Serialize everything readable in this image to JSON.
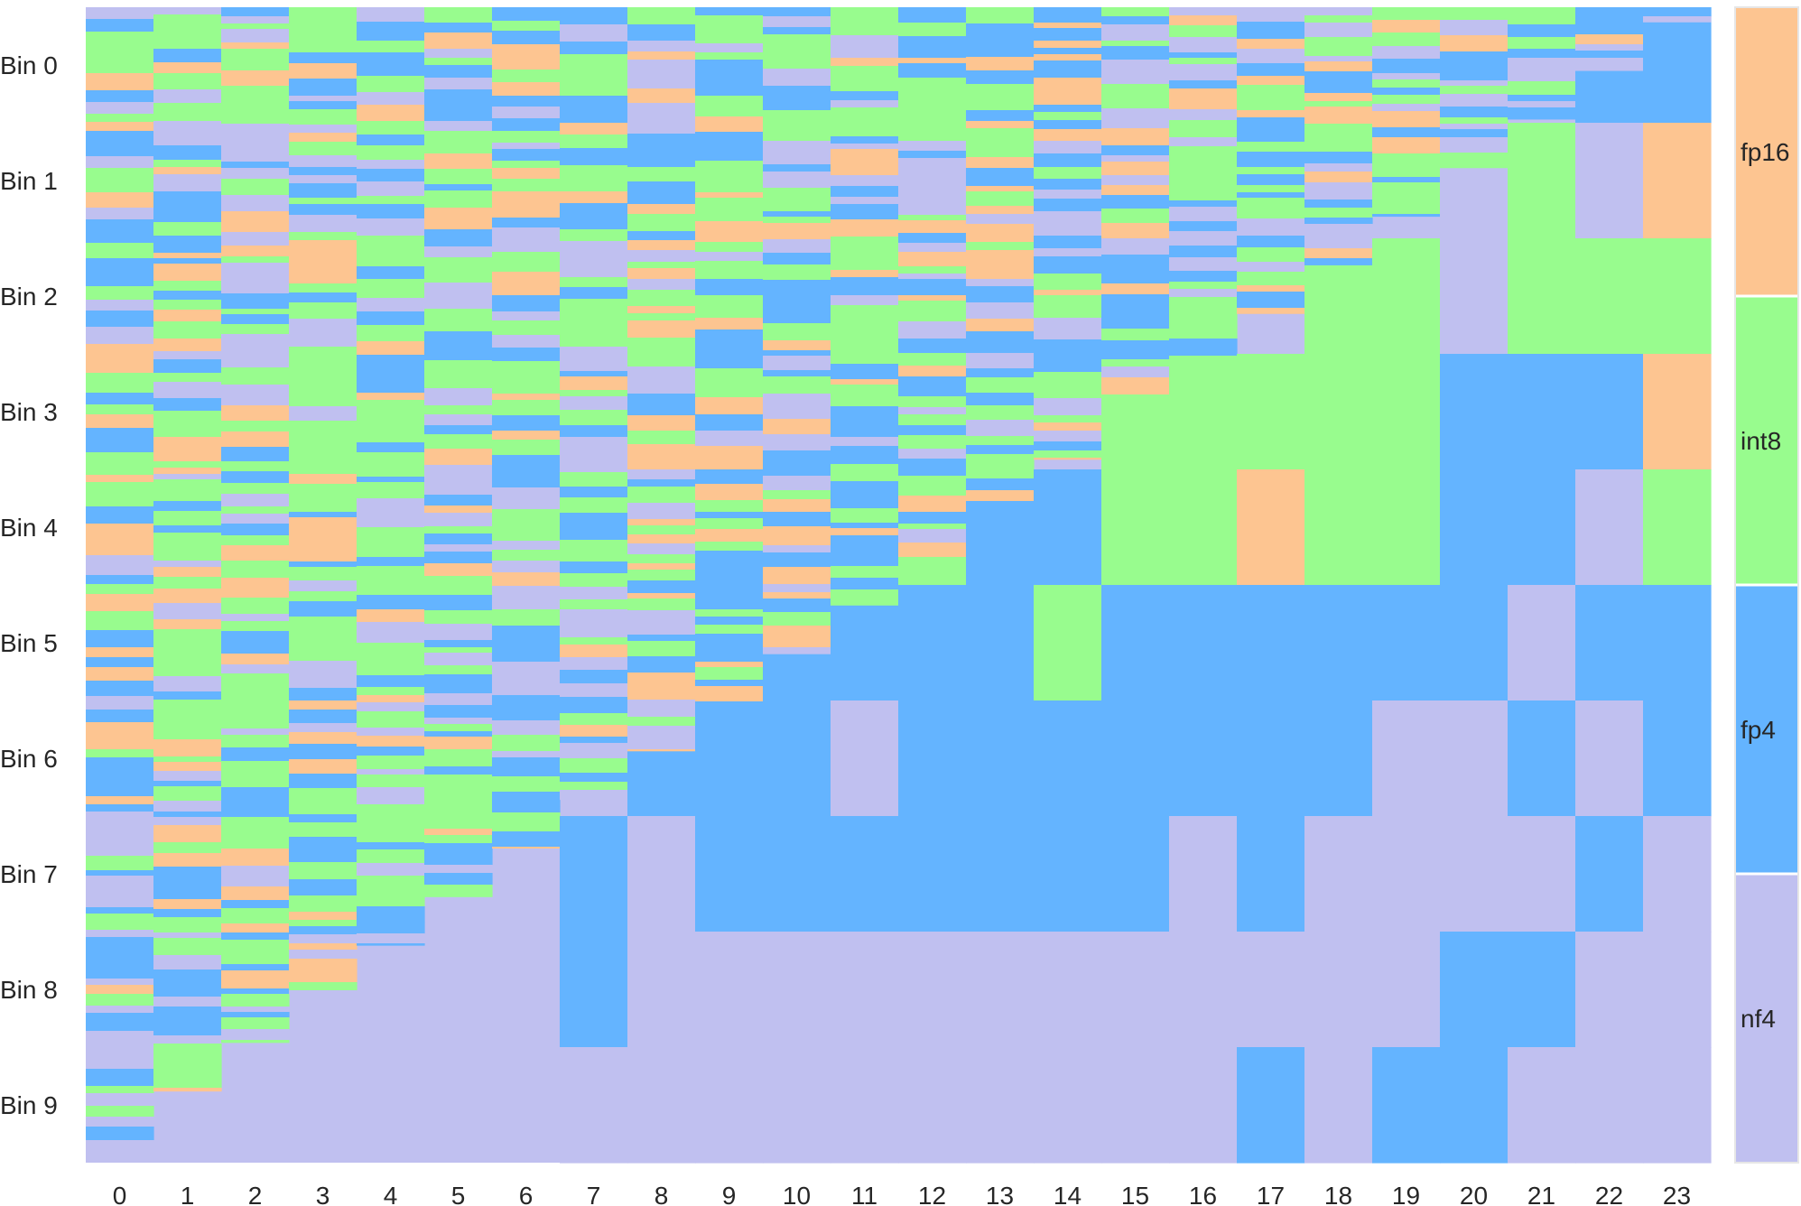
{
  "chart_data": {
    "type": "heatmap",
    "title": "",
    "xlabel": "",
    "ylabel": "",
    "x_categories": [
      "0",
      "1",
      "2",
      "3",
      "4",
      "5",
      "6",
      "7",
      "8",
      "9",
      "10",
      "11",
      "12",
      "13",
      "14",
      "15",
      "16",
      "17",
      "18",
      "19",
      "20",
      "21",
      "22",
      "23"
    ],
    "y_categories": [
      "Bin 0",
      "Bin 1",
      "Bin 2",
      "Bin 3",
      "Bin 4",
      "Bin 5",
      "Bin 6",
      "Bin 7",
      "Bin 8",
      "Bin 9"
    ],
    "legend": {
      "placement": "right colorbar",
      "entries": [
        {
          "label": "fp16",
          "color": "#FDC591"
        },
        {
          "label": "int8",
          "color": "#98FC8E"
        },
        {
          "label": "fp4",
          "color": "#64B4FF"
        },
        {
          "label": "nf4",
          "color": "#C0C0F0"
        }
      ]
    },
    "bins_per_column": [
      [
        null,
        null,
        null,
        null,
        null,
        null,
        null,
        null,
        null,
        null
      ],
      [
        null,
        null,
        null,
        null,
        null,
        null,
        null,
        null,
        null,
        null
      ],
      [
        null,
        null,
        null,
        null,
        null,
        null,
        null,
        null,
        null,
        null
      ],
      [
        null,
        null,
        null,
        null,
        null,
        null,
        null,
        null,
        null,
        null
      ],
      [
        null,
        null,
        null,
        null,
        null,
        null,
        null,
        null,
        null,
        null
      ],
      [
        null,
        null,
        null,
        null,
        null,
        null,
        null,
        null,
        null,
        null
      ],
      [
        null,
        null,
        null,
        null,
        null,
        null,
        null,
        null,
        null,
        null
      ],
      [
        null,
        null,
        null,
        null,
        null,
        null,
        null,
        "fp4",
        "fp4",
        "nf4"
      ],
      [
        null,
        null,
        null,
        null,
        null,
        null,
        "fp4",
        "nf4",
        "nf4",
        "nf4"
      ],
      [
        null,
        null,
        null,
        null,
        null,
        null,
        "fp4",
        "fp4",
        "nf4",
        "nf4"
      ],
      [
        null,
        null,
        null,
        null,
        null,
        "fp4",
        "fp4",
        "fp4",
        "nf4",
        "nf4"
      ],
      [
        null,
        null,
        null,
        null,
        null,
        "fp4",
        "nf4",
        "fp4",
        "nf4",
        "nf4"
      ],
      [
        null,
        null,
        null,
        null,
        "int8",
        "fp4",
        "fp4",
        "fp4",
        "nf4",
        "nf4"
      ],
      [
        null,
        null,
        null,
        null,
        "fp4",
        "fp4",
        "fp4",
        "fp4",
        "nf4",
        "nf4"
      ],
      [
        null,
        null,
        null,
        null,
        "fp4",
        "int8",
        "fp4",
        "fp4",
        "nf4",
        "nf4"
      ],
      [
        null,
        null,
        null,
        "int8",
        "int8",
        "fp4",
        "fp4",
        "fp4",
        "nf4",
        "nf4"
      ],
      [
        null,
        null,
        null,
        "int8",
        "int8",
        "fp4",
        "fp4",
        "nf4",
        "nf4",
        "nf4"
      ],
      [
        null,
        null,
        null,
        "int8",
        "fp16",
        "fp4",
        "fp4",
        "fp4",
        "nf4",
        "fp4"
      ],
      [
        null,
        null,
        "int8",
        "int8",
        "int8",
        "fp4",
        "fp4",
        "nf4",
        "nf4",
        "nf4"
      ],
      [
        null,
        null,
        "int8",
        "int8",
        "int8",
        "fp4",
        "nf4",
        "nf4",
        "nf4",
        "fp4"
      ],
      [
        null,
        "nf4",
        "nf4",
        "fp4",
        "fp4",
        "fp4",
        "nf4",
        "nf4",
        "fp4",
        "fp4"
      ],
      [
        null,
        "int8",
        "int8",
        "fp4",
        "fp4",
        "nf4",
        "fp4",
        "nf4",
        "fp4",
        "nf4"
      ],
      [
        "fp4",
        "nf4",
        "int8",
        "fp4",
        "nf4",
        "fp4",
        "nf4",
        "fp4",
        "nf4",
        "nf4"
      ],
      [
        "fp4",
        "fp16",
        "int8",
        "fp16",
        "int8",
        "fp4",
        "fp4",
        "nf4",
        "nf4",
        "nf4"
      ]
    ]
  }
}
